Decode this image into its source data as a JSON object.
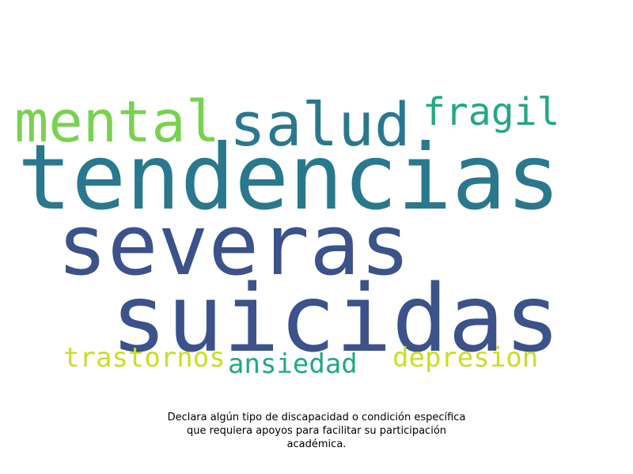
{
  "words": [
    {
      "key": "tendencias",
      "text": "tendencias",
      "color": "#2a788e"
    },
    {
      "key": "severas",
      "text": "severas",
      "color": "#3b528b"
    },
    {
      "key": "suicidas",
      "text": "suicidas",
      "color": "#3b528b"
    },
    {
      "key": "salud",
      "text": "salud",
      "color": "#2a788e"
    },
    {
      "key": "mental",
      "text": "mental",
      "color": "#7ad151"
    },
    {
      "key": "fragil",
      "text": "fragil",
      "color": "#22a884"
    },
    {
      "key": "trastornos",
      "text": "trastornos",
      "color": "#c8e020"
    },
    {
      "key": "ansiedad",
      "text": "ansiedad",
      "color": "#22a884"
    },
    {
      "key": "depresion",
      "text": "depresion",
      "color": "#c8e020"
    }
  ],
  "caption": {
    "line1": "Declara algún tipo de discapacidad o condición específica",
    "line2": "que requiera apoyos para facilitar su participación",
    "line3": "académica."
  }
}
